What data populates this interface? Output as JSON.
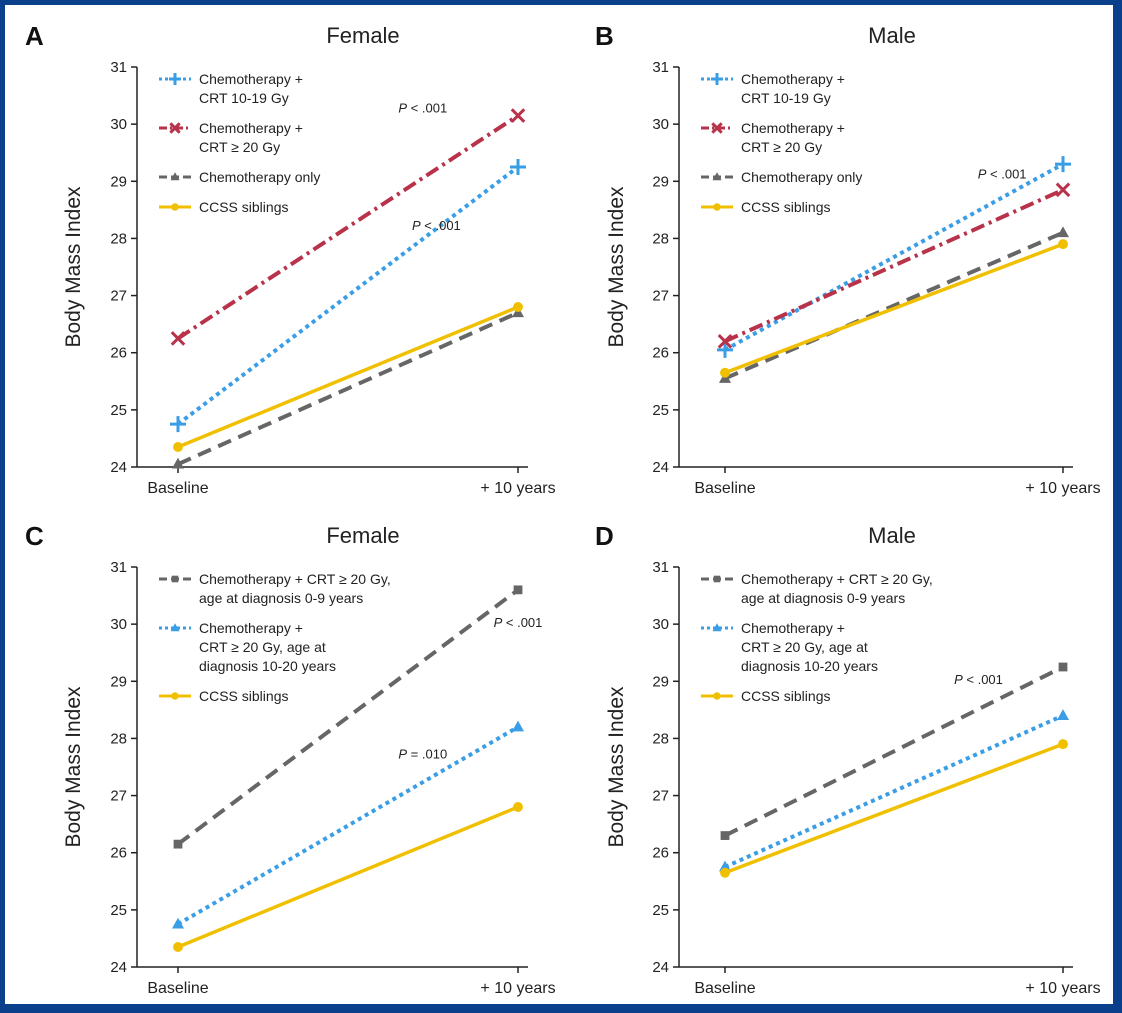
{
  "chart_data": [
    {
      "panel": "A",
      "title": "Female",
      "type": "line",
      "ylabel": "Body Mass Index",
      "ylim": [
        24,
        31
      ],
      "yticks": [
        24,
        25,
        26,
        27,
        28,
        29,
        30,
        31
      ],
      "categories": [
        "Baseline",
        "+ 10 years"
      ],
      "series": [
        {
          "name": "Chemotherapy + CRT 10-19 Gy",
          "legend_lines": [
            "Chemotherapy +",
            "CRT 10-19 Gy"
          ],
          "values": [
            24.75,
            29.25
          ],
          "color": "#3a9ee6",
          "dash": "dot",
          "marker": "plus"
        },
        {
          "name": "Chemotherapy + CRT ≥ 20 Gy",
          "legend_lines": [
            "Chemotherapy +",
            "CRT ≥ 20 Gy"
          ],
          "values": [
            26.25,
            30.15
          ],
          "color": "#b8324a",
          "dash": "dashdot",
          "marker": "x"
        },
        {
          "name": "Chemotherapy only",
          "legend_lines": [
            "Chemotherapy only"
          ],
          "values": [
            24.05,
            26.7
          ],
          "color": "#666666",
          "dash": "dash",
          "marker": "triangle"
        },
        {
          "name": "CCSS siblings",
          "legend_lines": [
            "CCSS siblings"
          ],
          "values": [
            24.35,
            26.8
          ],
          "color": "#f0c000",
          "dash": "solid",
          "marker": "circle"
        }
      ],
      "annotations": [
        {
          "p": "P",
          "text": " < .001",
          "x": 0.72,
          "y": 30.2
        },
        {
          "p": "P",
          "text": " < .001",
          "x": 0.76,
          "y": 28.15
        }
      ]
    },
    {
      "panel": "B",
      "title": "Male",
      "type": "line",
      "ylabel": "Body Mass Index",
      "ylim": [
        24,
        31
      ],
      "yticks": [
        24,
        25,
        26,
        27,
        28,
        29,
        30,
        31
      ],
      "categories": [
        "Baseline",
        "+ 10 years"
      ],
      "series": [
        {
          "name": "Chemotherapy + CRT 10-19 Gy",
          "legend_lines": [
            "Chemotherapy +",
            "CRT 10-19 Gy"
          ],
          "values": [
            26.05,
            29.3
          ],
          "color": "#3a9ee6",
          "dash": "dot",
          "marker": "plus"
        },
        {
          "name": "Chemotherapy + CRT ≥ 20 Gy",
          "legend_lines": [
            "Chemotherapy +",
            "CRT ≥ 20 Gy"
          ],
          "values": [
            26.2,
            28.85
          ],
          "color": "#b8324a",
          "dash": "dashdot",
          "marker": "x"
        },
        {
          "name": "Chemotherapy only",
          "legend_lines": [
            "Chemotherapy only"
          ],
          "values": [
            25.55,
            28.1
          ],
          "color": "#666666",
          "dash": "dash",
          "marker": "triangle"
        },
        {
          "name": "CCSS siblings",
          "legend_lines": [
            "CCSS siblings"
          ],
          "values": [
            25.65,
            27.9
          ],
          "color": "#f0c000",
          "dash": "solid",
          "marker": "circle"
        }
      ],
      "annotations": [
        {
          "p": "P",
          "text": " < .001",
          "x": 0.82,
          "y": 29.05
        }
      ]
    },
    {
      "panel": "C",
      "title": "Female",
      "type": "line",
      "ylabel": "Body Mass Index",
      "ylim": [
        24,
        31
      ],
      "yticks": [
        24,
        25,
        26,
        27,
        28,
        29,
        30,
        31
      ],
      "categories": [
        "Baseline",
        "+ 10 years"
      ],
      "series": [
        {
          "name": "Chemotherapy + CRT ≥ 20 Gy, age at diagnosis 0-9 years",
          "legend_lines": [
            "Chemotherapy + CRT ≥ 20 Gy,",
            "age at diagnosis 0-9 years"
          ],
          "values": [
            26.15,
            30.6
          ],
          "color": "#666666",
          "dash": "dash",
          "marker": "square"
        },
        {
          "name": "Chemotherapy + CRT ≥ 20 Gy, age at diagnosis 10-20 years",
          "legend_lines": [
            "Chemotherapy +",
            "CRT ≥ 20 Gy, age at",
            "diagnosis 10-20 years"
          ],
          "values": [
            24.75,
            28.2
          ],
          "color": "#3a9ee6",
          "dash": "dot",
          "marker": "triangle"
        },
        {
          "name": "CCSS siblings",
          "legend_lines": [
            "CCSS siblings"
          ],
          "values": [
            24.35,
            26.8
          ],
          "color": "#f0c000",
          "dash": "solid",
          "marker": "circle"
        }
      ],
      "annotations": [
        {
          "p": "P",
          "text": " < .001",
          "x": 1.0,
          "y": 29.95
        },
        {
          "p": "P",
          "text": " = .010",
          "x": 0.72,
          "y": 27.65
        }
      ]
    },
    {
      "panel": "D",
      "title": "Male",
      "type": "line",
      "ylabel": "Body Mass Index",
      "ylim": [
        24,
        31
      ],
      "yticks": [
        24,
        25,
        26,
        27,
        28,
        29,
        30,
        31
      ],
      "categories": [
        "Baseline",
        "+ 10 years"
      ],
      "series": [
        {
          "name": "Chemotherapy + CRT ≥ 20 Gy, age at diagnosis 0-9 years",
          "legend_lines": [
            "Chemotherapy + CRT ≥ 20 Gy,",
            "age at diagnosis 0-9 years"
          ],
          "values": [
            26.3,
            29.25
          ],
          "color": "#666666",
          "dash": "dash",
          "marker": "square"
        },
        {
          "name": "Chemotherapy + CRT ≥ 20 Gy, age at diagnosis 10-20 years",
          "legend_lines": [
            "Chemotherapy +",
            "CRT ≥ 20 Gy, age at",
            "diagnosis 10-20 years"
          ],
          "values": [
            25.75,
            28.4
          ],
          "color": "#3a9ee6",
          "dash": "dot",
          "marker": "triangle"
        },
        {
          "name": "CCSS siblings",
          "legend_lines": [
            "CCSS siblings"
          ],
          "values": [
            25.65,
            27.9
          ],
          "color": "#f0c000",
          "dash": "solid",
          "marker": "circle"
        }
      ],
      "annotations": [
        {
          "p": "P",
          "text": " < .001",
          "x": 0.75,
          "y": 28.95
        }
      ]
    }
  ]
}
